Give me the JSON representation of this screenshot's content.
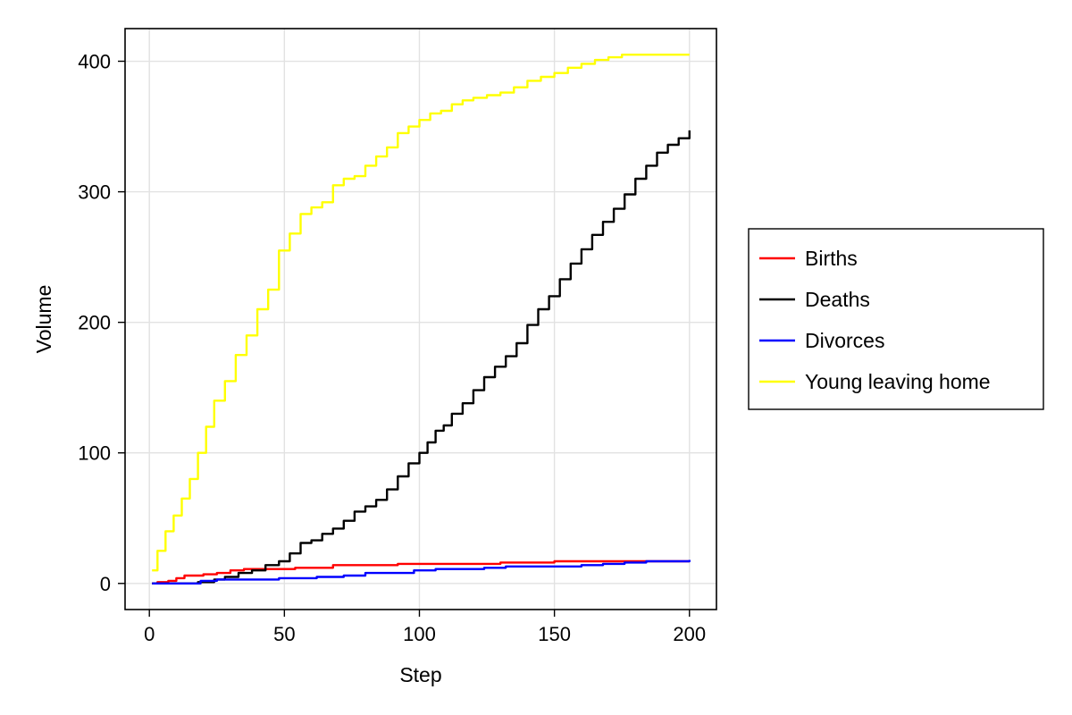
{
  "chart_data": {
    "type": "line",
    "title": "",
    "xlabel": "Step",
    "ylabel": "Volume",
    "xlim": [
      -9,
      210
    ],
    "ylim": [
      -20,
      425
    ],
    "xticks": [
      0,
      50,
      100,
      150,
      200
    ],
    "yticks": [
      0,
      100,
      200,
      300,
      400
    ],
    "x_tick_labels": [
      "0",
      "50",
      "100",
      "150",
      "200"
    ],
    "y_tick_labels": [
      "0",
      "100",
      "200",
      "300",
      "400"
    ],
    "grid": true,
    "legend_position": "right",
    "series": [
      {
        "name": "Births",
        "color": "#ff0000",
        "points": [
          [
            1,
            0
          ],
          [
            3,
            1
          ],
          [
            7,
            2
          ],
          [
            10,
            4
          ],
          [
            13,
            6
          ],
          [
            20,
            7
          ],
          [
            25,
            8
          ],
          [
            30,
            10
          ],
          [
            35,
            11
          ],
          [
            45,
            11
          ],
          [
            54,
            12
          ],
          [
            66,
            12
          ],
          [
            68,
            14
          ],
          [
            90,
            14
          ],
          [
            92,
            15
          ],
          [
            128,
            15
          ],
          [
            130,
            16
          ],
          [
            148,
            16
          ],
          [
            150,
            17
          ],
          [
            200,
            17
          ]
        ]
      },
      {
        "name": "Deaths",
        "color": "#000000",
        "points": [
          [
            1,
            0
          ],
          [
            10,
            0
          ],
          [
            18,
            1
          ],
          [
            24,
            3
          ],
          [
            28,
            5
          ],
          [
            33,
            8
          ],
          [
            38,
            10
          ],
          [
            43,
            14
          ],
          [
            48,
            17
          ],
          [
            52,
            23
          ],
          [
            56,
            31
          ],
          [
            60,
            33
          ],
          [
            64,
            38
          ],
          [
            68,
            42
          ],
          [
            72,
            48
          ],
          [
            76,
            55
          ],
          [
            80,
            59
          ],
          [
            84,
            64
          ],
          [
            88,
            72
          ],
          [
            92,
            82
          ],
          [
            96,
            92
          ],
          [
            100,
            100
          ],
          [
            103,
            108
          ],
          [
            106,
            117
          ],
          [
            109,
            121
          ],
          [
            112,
            130
          ],
          [
            116,
            138
          ],
          [
            120,
            148
          ],
          [
            124,
            158
          ],
          [
            128,
            166
          ],
          [
            132,
            174
          ],
          [
            136,
            184
          ],
          [
            140,
            198
          ],
          [
            144,
            210
          ],
          [
            148,
            220
          ],
          [
            152,
            233
          ],
          [
            156,
            245
          ],
          [
            160,
            256
          ],
          [
            164,
            267
          ],
          [
            168,
            277
          ],
          [
            172,
            287
          ],
          [
            176,
            298
          ],
          [
            180,
            310
          ],
          [
            184,
            320
          ],
          [
            188,
            330
          ],
          [
            192,
            336
          ],
          [
            196,
            341
          ],
          [
            200,
            347
          ]
        ]
      },
      {
        "name": "Divorces",
        "color": "#0000ff",
        "points": [
          [
            1,
            0
          ],
          [
            17,
            0
          ],
          [
            19,
            2
          ],
          [
            25,
            3
          ],
          [
            46,
            3
          ],
          [
            48,
            4
          ],
          [
            60,
            4
          ],
          [
            62,
            5
          ],
          [
            70,
            5
          ],
          [
            72,
            6
          ],
          [
            78,
            6
          ],
          [
            80,
            8
          ],
          [
            96,
            8
          ],
          [
            98,
            10
          ],
          [
            106,
            11
          ],
          [
            120,
            11
          ],
          [
            124,
            12
          ],
          [
            132,
            13
          ],
          [
            150,
            13
          ],
          [
            160,
            14
          ],
          [
            168,
            15
          ],
          [
            176,
            16
          ],
          [
            184,
            17
          ],
          [
            190,
            17
          ],
          [
            200,
            18
          ]
        ]
      },
      {
        "name": "Young leaving home",
        "color": "#ffff00",
        "points": [
          [
            1,
            10
          ],
          [
            3,
            25
          ],
          [
            6,
            40
          ],
          [
            9,
            52
          ],
          [
            12,
            65
          ],
          [
            15,
            80
          ],
          [
            18,
            100
          ],
          [
            21,
            120
          ],
          [
            24,
            140
          ],
          [
            28,
            155
          ],
          [
            32,
            175
          ],
          [
            36,
            190
          ],
          [
            40,
            210
          ],
          [
            44,
            225
          ],
          [
            48,
            255
          ],
          [
            52,
            268
          ],
          [
            56,
            283
          ],
          [
            60,
            288
          ],
          [
            64,
            292
          ],
          [
            68,
            305
          ],
          [
            72,
            310
          ],
          [
            76,
            312
          ],
          [
            80,
            320
          ],
          [
            84,
            327
          ],
          [
            88,
            334
          ],
          [
            92,
            345
          ],
          [
            96,
            350
          ],
          [
            100,
            355
          ],
          [
            104,
            360
          ],
          [
            108,
            362
          ],
          [
            112,
            367
          ],
          [
            116,
            370
          ],
          [
            120,
            372
          ],
          [
            125,
            374
          ],
          [
            130,
            376
          ],
          [
            135,
            380
          ],
          [
            140,
            385
          ],
          [
            145,
            388
          ],
          [
            150,
            391
          ],
          [
            155,
            395
          ],
          [
            160,
            398
          ],
          [
            165,
            401
          ],
          [
            170,
            403
          ],
          [
            175,
            405
          ],
          [
            185,
            405
          ],
          [
            200,
            405
          ]
        ]
      }
    ]
  }
}
